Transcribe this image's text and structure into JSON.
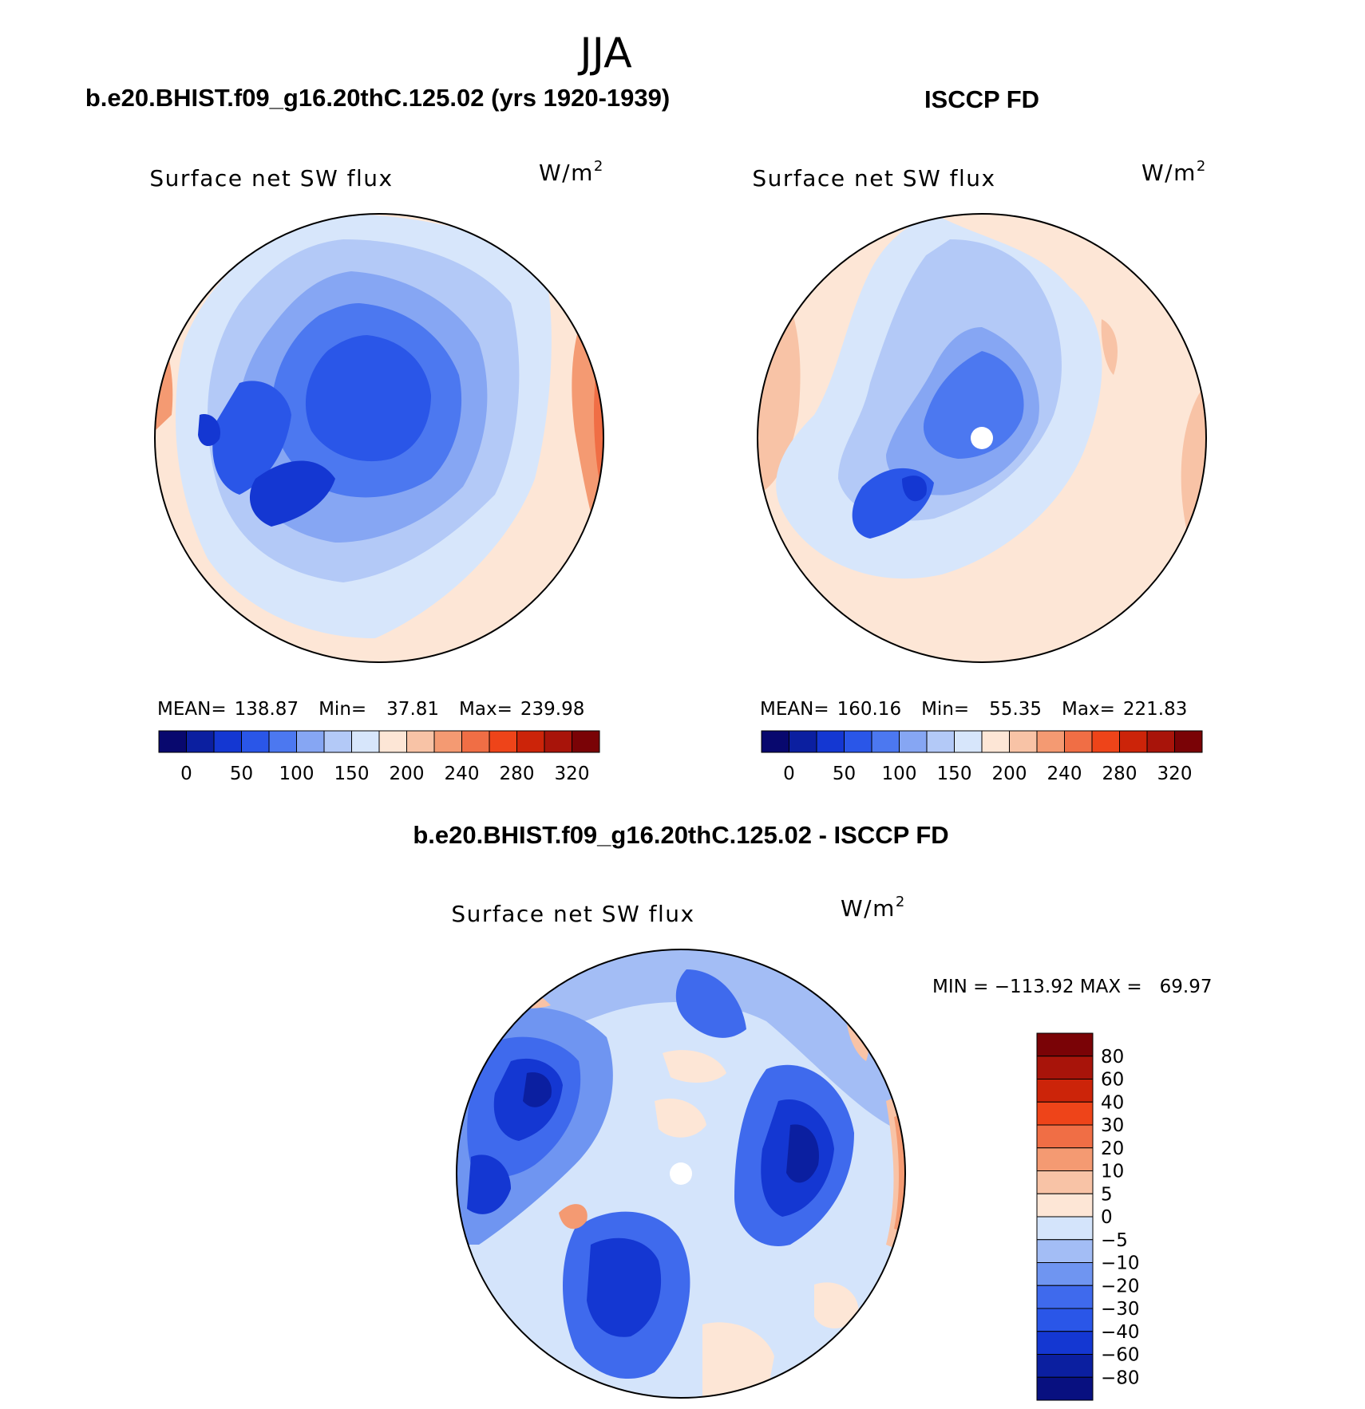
{
  "figure": {
    "title": "JJA",
    "unit_label": "W/m",
    "unit_sup": "2"
  },
  "panels": [
    {
      "id": "model",
      "header": "b.e20.BHIST.f09_g16.20thC.125.02 (yrs 1920-1939)",
      "field": "Surface net SW flux",
      "stats": {
        "mean_label": "MEAN=",
        "mean": "138.87",
        "min_label": "Min=",
        "min": "37.81",
        "max_label": "Max=",
        "max": "239.98"
      },
      "colorbar_ticks": [
        "0",
        "50",
        "100",
        "150",
        "200",
        "240",
        "280",
        "320"
      ],
      "pole_hole": false
    },
    {
      "id": "obs",
      "header": "ISCCP FD",
      "field": "Surface net SW flux",
      "stats": {
        "mean_label": "MEAN=",
        "mean": "160.16",
        "min_label": "Min=",
        "min": "55.35",
        "max_label": "Max=",
        "max": "221.83"
      },
      "colorbar_ticks": [
        "0",
        "50",
        "100",
        "150",
        "200",
        "240",
        "280",
        "320"
      ],
      "pole_hole": true
    },
    {
      "id": "diff",
      "header": "b.e20.BHIST.f09_g16.20thC.125.02 - ISCCP FD",
      "field": "Surface net SW flux",
      "stats": {
        "text": "MIN = −113.92 MAX =   69.97"
      },
      "colorbar_ticks": [
        "80",
        "60",
        "40",
        "30",
        "20",
        "10",
        "5",
        "0",
        "−5",
        "−10",
        "−20",
        "−30",
        "−40",
        "−60",
        "−80"
      ],
      "pole_hole": true
    }
  ],
  "colors": {
    "abs_scale": [
      "#08086e",
      "#0b1fa0",
      "#1437d2",
      "#2a56e8",
      "#4c78f0",
      "#86a6f3",
      "#b3c9f7",
      "#d7e6fb",
      "#fde6d6",
      "#f8c3a6",
      "#f49a72",
      "#f06e45",
      "#ee4419",
      "#cc2409",
      "#a8140a",
      "#7a0306"
    ],
    "diff_scale": [
      "#081080",
      "#0b1fa0",
      "#1437d2",
      "#2a56e8",
      "#3f6aed",
      "#6f95f1",
      "#a3bdf5",
      "#d4e4fb",
      "#fde6d6",
      "#f8c3a6",
      "#f49a72",
      "#f06e45",
      "#ee4419",
      "#cc2409",
      "#a8140a",
      "#7a0306"
    ]
  }
}
